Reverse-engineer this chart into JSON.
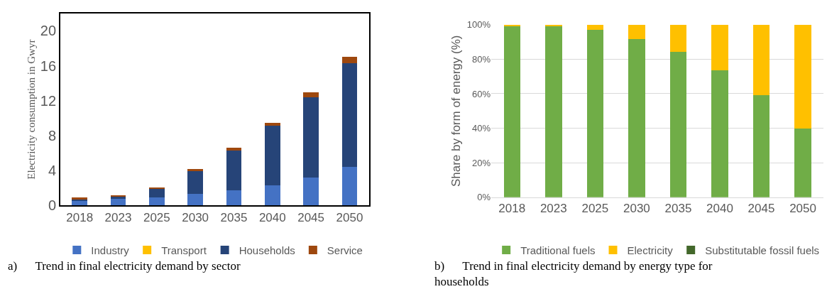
{
  "chart_data": [
    {
      "type": "bar",
      "stacked": true,
      "ylabel": "Electricity consumption in Gwyr",
      "categories": [
        "2018",
        "2023",
        "2025",
        "2030",
        "2035",
        "2040",
        "2045",
        "2050"
      ],
      "series": [
        {
          "name": "Industry",
          "color": "#4472c4",
          "values": [
            0.6,
            0.8,
            0.9,
            1.3,
            1.7,
            2.3,
            3.2,
            4.4
          ]
        },
        {
          "name": "Transport",
          "color": "#ffc000",
          "values": [
            0,
            0,
            0,
            0,
            0,
            0,
            0,
            0
          ]
        },
        {
          "name": "Households",
          "color": "#264478",
          "values": [
            0.1,
            0.2,
            1.0,
            2.6,
            4.6,
            6.8,
            9.2,
            11.9
          ]
        },
        {
          "name": "Service",
          "color": "#9e480e",
          "values": [
            0.2,
            0.2,
            0.2,
            0.3,
            0.3,
            0.4,
            0.6,
            0.7
          ]
        }
      ],
      "ylim": [
        0,
        22
      ],
      "yticks": [
        0,
        4,
        8,
        12,
        16,
        20
      ],
      "grid": false,
      "legend": "bottom",
      "annotations": [
        "a)      Trend in final electricity demand by sector"
      ]
    },
    {
      "type": "bar",
      "stacked": true,
      "ylabel": "Share by form of energy (%)",
      "categories": [
        "2018",
        "2023",
        "2025",
        "2030",
        "2035",
        "2040",
        "2045",
        "2050"
      ],
      "series": [
        {
          "name": "Traditional fuels",
          "color": "#70ad47",
          "values": [
            99.3,
            99.3,
            97.2,
            91.7,
            84.2,
            73.5,
            59,
            39.9
          ]
        },
        {
          "name": "Electricity",
          "color": "#ffc000",
          "values": [
            0.7,
            0.7,
            2.8,
            8.3,
            15.8,
            26.5,
            41,
            60.1
          ]
        },
        {
          "name": "Substitutable fossil fuels",
          "color": "#43682b",
          "values": [
            0,
            0,
            0,
            0,
            0,
            0,
            0,
            0
          ]
        }
      ],
      "ylim": [
        0,
        100
      ],
      "yticks": [
        {
          "value": 0,
          "label": "0%"
        },
        {
          "value": 20,
          "label": "20%"
        },
        {
          "value": 40,
          "label": "40%"
        },
        {
          "value": 60,
          "label": "60%"
        },
        {
          "value": 80,
          "label": "80%"
        },
        {
          "value": 100,
          "label": "100%"
        }
      ],
      "grid": "y",
      "legend": "bottom",
      "annotations": [
        "b)      Trend in final electricity demand by energy type for households"
      ]
    }
  ]
}
